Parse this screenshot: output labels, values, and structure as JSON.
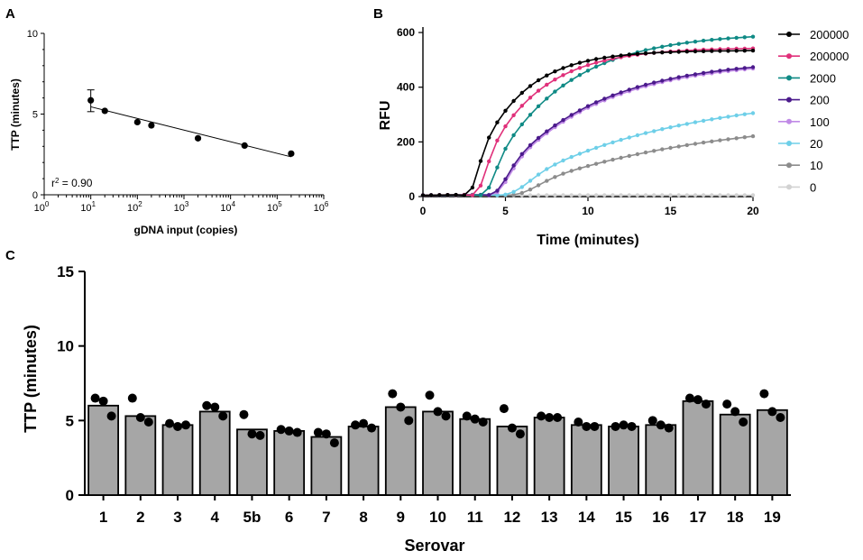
{
  "panels": {
    "A": {
      "letter": "A"
    },
    "B": {
      "letter": "B"
    },
    "C": {
      "letter": "C"
    }
  },
  "chart_data": [
    {
      "id": "A",
      "type": "scatter",
      "title": "",
      "xlabel": "gDNA input (copies)",
      "ylabel": "TTP (minutes)",
      "xscale": "log10",
      "xlim_exp": [
        0,
        6
      ],
      "xtick_exponents": [
        "0",
        "1",
        "2",
        "3",
        "4",
        "5",
        "6"
      ],
      "xtick_base": "10",
      "ylim": [
        0,
        10
      ],
      "yticks": [
        "0",
        "5",
        "10"
      ],
      "points": [
        {
          "x": 10,
          "y": 5.85,
          "err_lo": 5.15,
          "err_hi": 6.5
        },
        {
          "x": 20,
          "y": 5.2
        },
        {
          "x": 100,
          "y": 4.5
        },
        {
          "x": 200,
          "y": 4.3
        },
        {
          "x": 2000,
          "y": 3.5
        },
        {
          "x": 20000,
          "y": 3.05
        },
        {
          "x": 200000,
          "y": 2.55
        }
      ],
      "fit": {
        "x_start": 10,
        "y_start": 5.45,
        "x_end": 200000,
        "y_end": 2.35
      },
      "annotation": {
        "base": "r",
        "sup": "2",
        "rest": " = 0.90"
      }
    },
    {
      "id": "B",
      "type": "line",
      "title": "",
      "xlabel": "Time (minutes)",
      "ylabel": "RFU",
      "xlim": [
        0,
        20
      ],
      "ylim": [
        0,
        620
      ],
      "xticks": [
        "0",
        "5",
        "10",
        "15",
        "20"
      ],
      "yticks": [
        "0",
        "200",
        "400",
        "600"
      ],
      "legend_position": "right",
      "series": [
        {
          "name": "200000",
          "color": "#000000",
          "onset": 2.5,
          "plateau": 530,
          "k": 1.6,
          "r": 0.35
        },
        {
          "name": "200000",
          "color": "#e0307a",
          "onset": 2.9,
          "plateau": 540,
          "k": 1.4,
          "r": 0.3
        },
        {
          "name": "2000",
          "color": "#0f8a85",
          "onset": 3.4,
          "plateau": 595,
          "k": 1.3,
          "r": 0.22
        },
        {
          "name": "200",
          "color": "#4b1a8c",
          "onset": 3.8,
          "plateau": 500,
          "k": 0.7,
          "r": 0.17
        },
        {
          "name": "100",
          "color": "#c08ae6",
          "onset": 3.9,
          "plateau": 495,
          "k": 0.7,
          "r": 0.17
        },
        {
          "name": "20",
          "color": "#6ecfe8",
          "onset": 4.4,
          "plateau": 380,
          "k": 0.3,
          "r": 0.1
        },
        {
          "name": "10",
          "color": "#8c8c8c",
          "onset": 4.9,
          "plateau": 290,
          "k": 0.3,
          "r": 0.09
        },
        {
          "name": "0",
          "color": "#d2d2d2",
          "onset": 99,
          "plateau": 0,
          "k": 0,
          "r": 0
        }
      ]
    },
    {
      "id": "C",
      "type": "bar",
      "title": "",
      "xlabel": "Serovar",
      "ylabel": "TTP (minutes)",
      "ylim": [
        0,
        15
      ],
      "yticks": [
        "0",
        "5",
        "10",
        "15"
      ],
      "categories": [
        "1",
        "2",
        "3",
        "4",
        "5b",
        "6",
        "7",
        "8",
        "9",
        "10",
        "11",
        "12",
        "13",
        "14",
        "15",
        "16",
        "17",
        "18",
        "19"
      ],
      "values": [
        6.0,
        5.3,
        4.7,
        5.6,
        4.4,
        4.3,
        3.9,
        4.6,
        5.9,
        5.6,
        5.1,
        4.6,
        5.2,
        4.7,
        4.6,
        4.7,
        6.3,
        5.4,
        5.7
      ],
      "replicates": [
        [
          6.5,
          6.3,
          5.3
        ],
        [
          6.5,
          5.2,
          4.9
        ],
        [
          4.8,
          4.6,
          4.7
        ],
        [
          6.0,
          5.9,
          5.3
        ],
        [
          5.4,
          4.1,
          4.0
        ],
        [
          4.4,
          4.3,
          4.2
        ],
        [
          4.2,
          4.1,
          3.5
        ],
        [
          4.7,
          4.8,
          4.5
        ],
        [
          6.8,
          5.9,
          5.0
        ],
        [
          6.7,
          5.6,
          5.3
        ],
        [
          5.3,
          5.1,
          4.9
        ],
        [
          5.8,
          4.5,
          4.1
        ],
        [
          5.3,
          5.2,
          5.2
        ],
        [
          4.9,
          4.6,
          4.6
        ],
        [
          4.6,
          4.7,
          4.6
        ],
        [
          5.0,
          4.7,
          4.5
        ],
        [
          6.5,
          6.4,
          6.1
        ],
        [
          6.1,
          5.6,
          4.9
        ],
        [
          6.8,
          5.6,
          5.2
        ]
      ]
    }
  ]
}
